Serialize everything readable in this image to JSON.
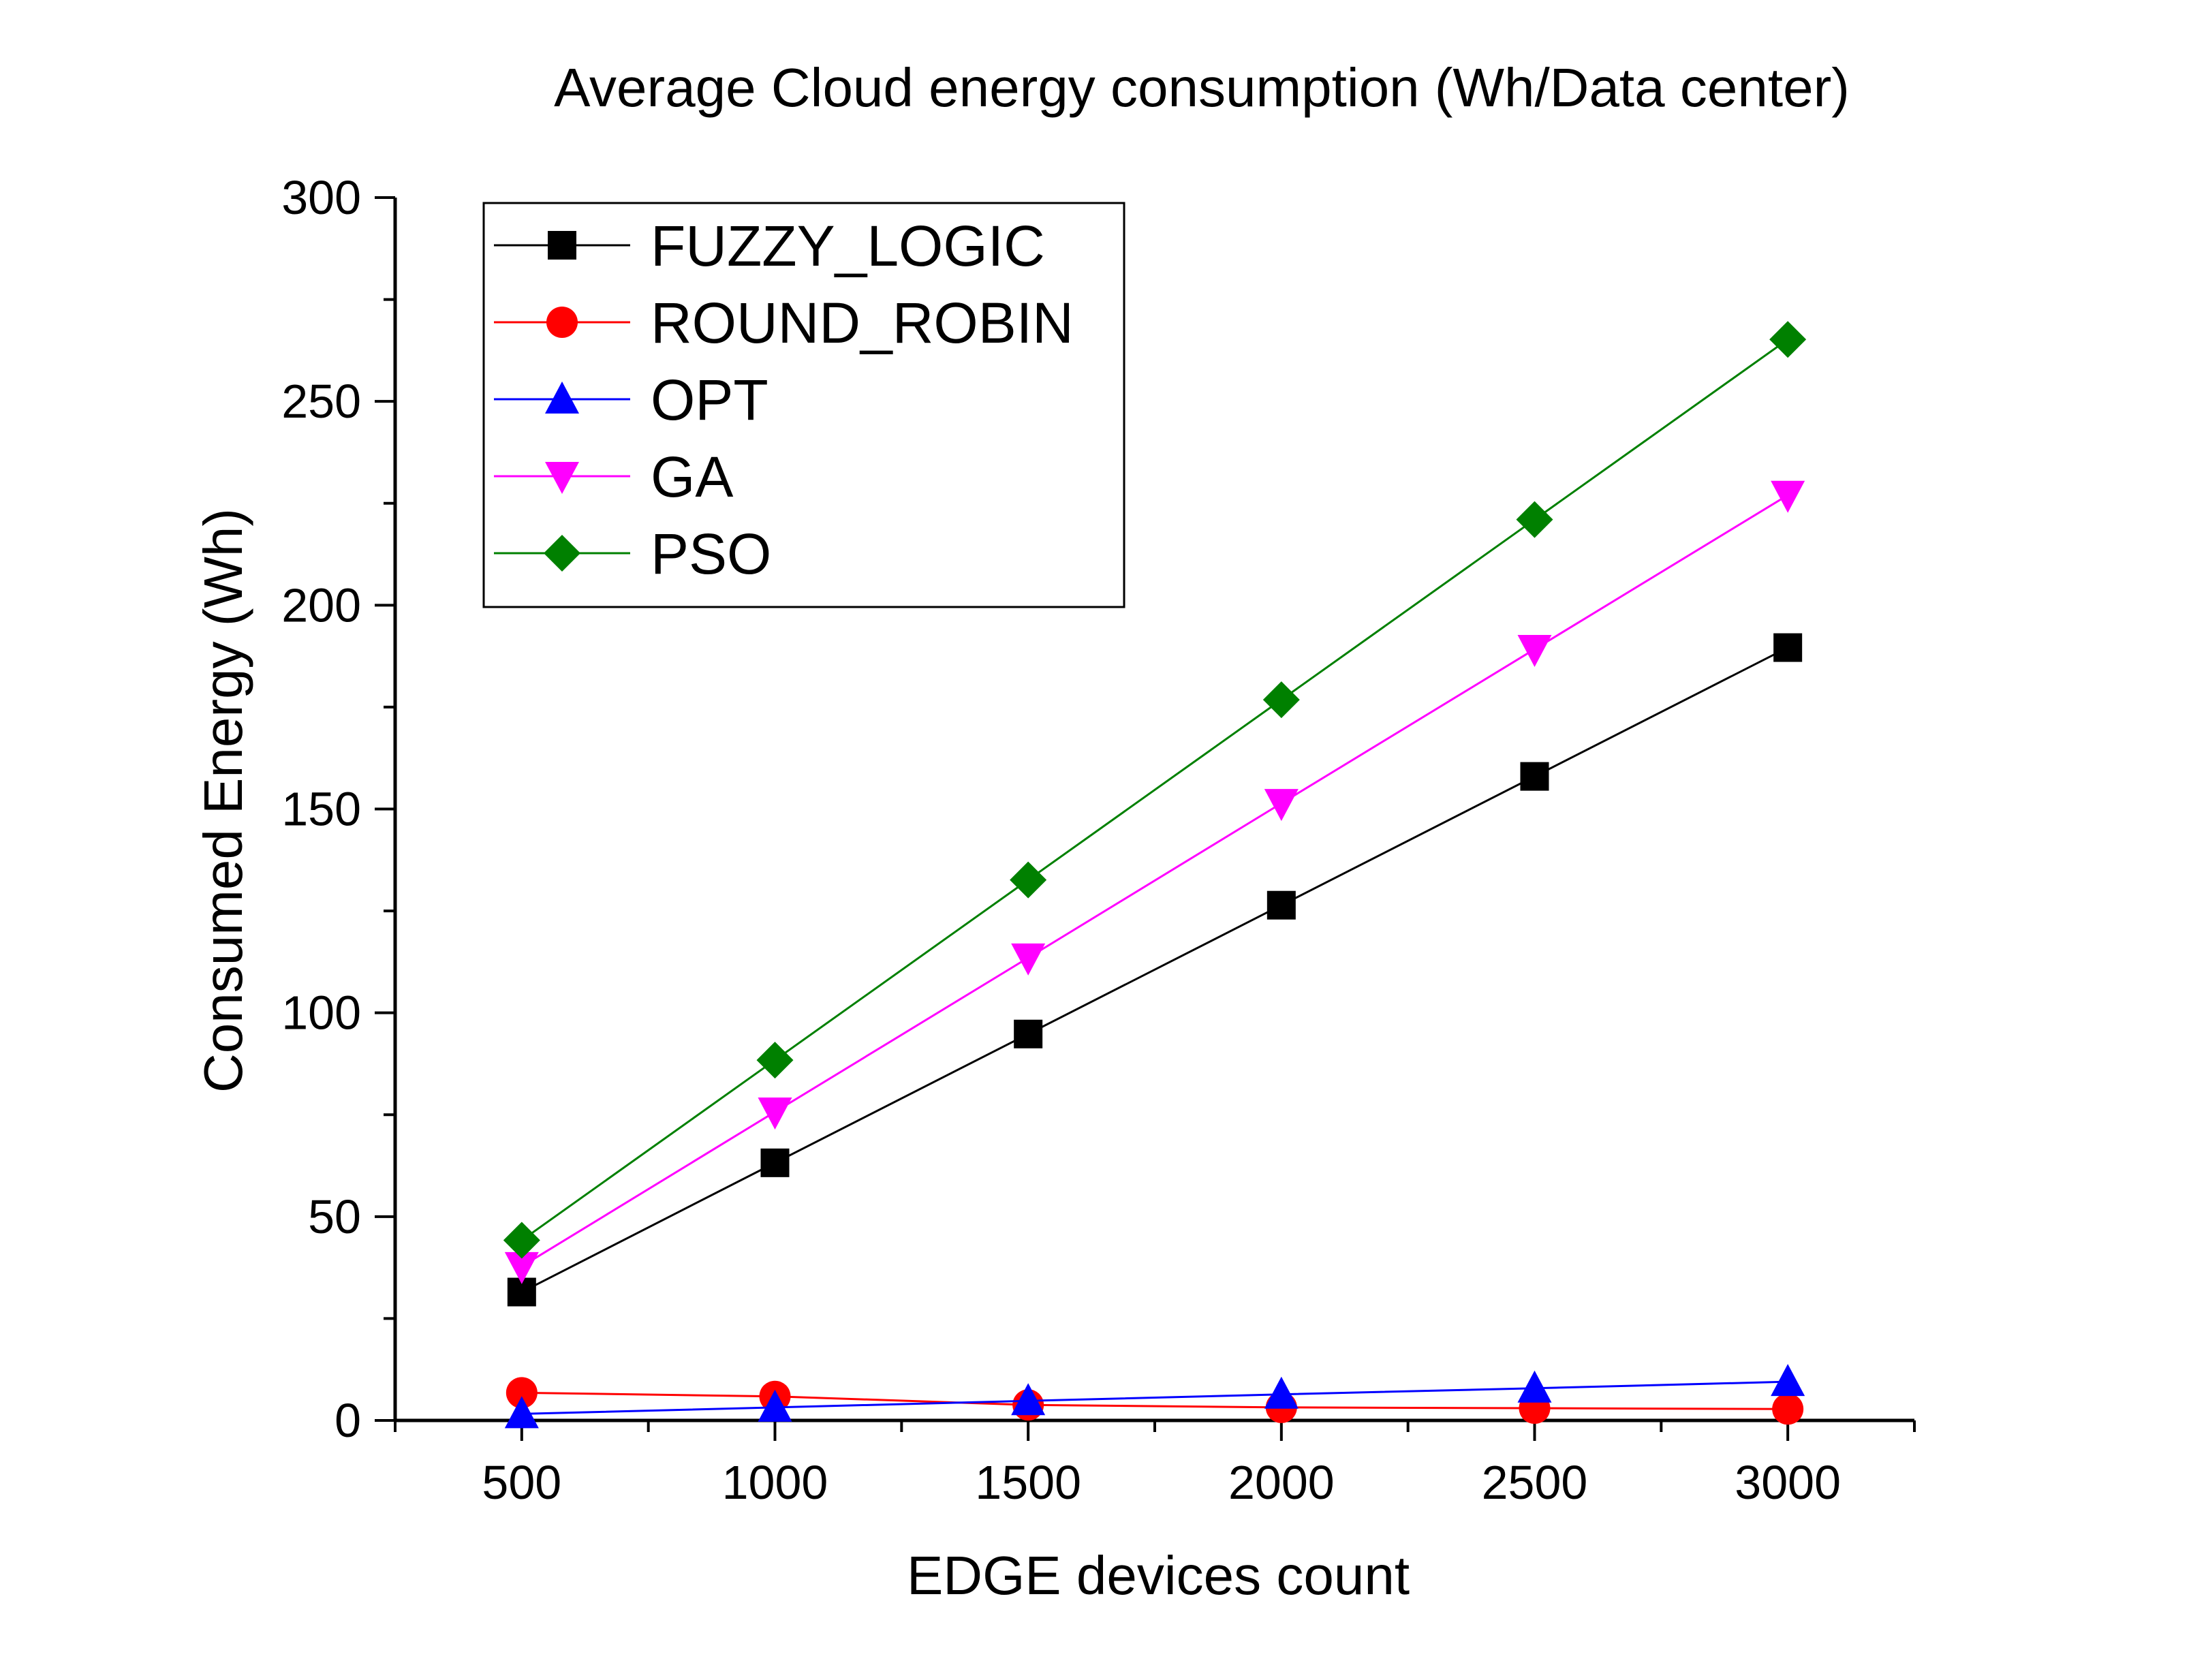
{
  "chart_data": {
    "type": "line",
    "title": "Average Cloud energy consumption (Wh/Data center)",
    "xlabel": "EDGE devices count",
    "ylabel": "Consumed Energy (Wh)",
    "x": [
      500,
      1000,
      1500,
      2000,
      2500,
      3000
    ],
    "xlim": [
      250,
      3250
    ],
    "ylim": [
      0,
      300
    ],
    "xticks": [
      "500",
      "1000",
      "1500",
      "2000",
      "2500",
      "3000"
    ],
    "yticks": [
      "0",
      "50",
      "100",
      "150",
      "200",
      "250",
      "300"
    ],
    "grid": false,
    "legend_position": "top-left",
    "series": [
      {
        "name": "FUZZY_LOGIC",
        "color": "#000000",
        "marker": "square",
        "values": [
          31.5,
          63.2,
          94.8,
          126.4,
          158.0,
          189.6
        ]
      },
      {
        "name": "ROUND_ROBIN",
        "color": "#ff0000",
        "marker": "circle",
        "values": [
          6.8,
          5.9,
          3.8,
          3.2,
          3.0,
          2.8
        ]
      },
      {
        "name": "OPT",
        "color": "#0000ff",
        "marker": "triangle-up",
        "values": [
          1.6,
          3.2,
          4.8,
          6.4,
          7.9,
          9.5
        ]
      },
      {
        "name": "GA",
        "color": "#ff00ff",
        "marker": "triangle-down",
        "values": [
          37.8,
          75.7,
          113.5,
          151.4,
          189.2,
          227.0
        ]
      },
      {
        "name": "PSO",
        "color": "#008000",
        "marker": "diamond",
        "values": [
          44.2,
          88.4,
          132.6,
          176.8,
          221.0,
          265.2
        ]
      }
    ]
  }
}
